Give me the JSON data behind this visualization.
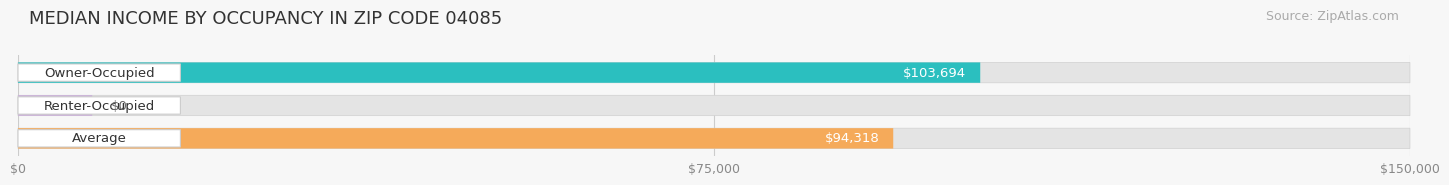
{
  "title": "MEDIAN INCOME BY OCCUPANCY IN ZIP CODE 04085",
  "source": "Source: ZipAtlas.com",
  "categories": [
    "Owner-Occupied",
    "Renter-Occupied",
    "Average"
  ],
  "values": [
    103694,
    0,
    94318
  ],
  "bar_colors": [
    "#2bbfbf",
    "#c8a8d8",
    "#f5aa5a"
  ],
  "bar_labels": [
    "$103,694",
    "$0",
    "$94,318"
  ],
  "renter_small_value": 8000,
  "xlim": [
    0,
    150000
  ],
  "xticks": [
    0,
    75000,
    150000
  ],
  "xtick_labels": [
    "$0",
    "$75,000",
    "$150,000"
  ],
  "background_color": "#f7f7f7",
  "bar_bg_color": "#e4e4e4",
  "bar_bg_color2": "#ececec",
  "title_fontsize": 13,
  "source_fontsize": 9,
  "label_fontsize": 9.5,
  "tick_fontsize": 9
}
